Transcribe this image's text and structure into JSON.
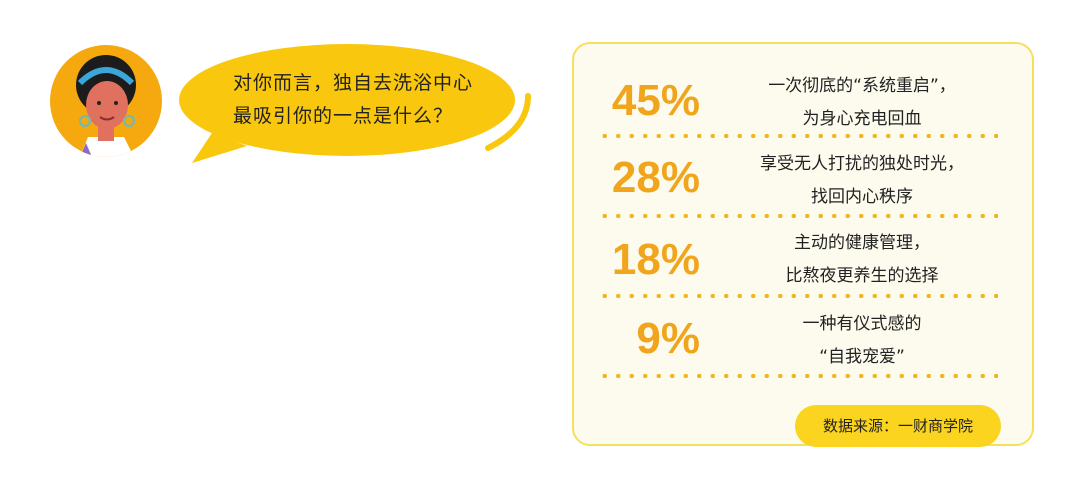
{
  "question": {
    "line1": "对你而言，独自去洗浴中心",
    "line2": "最吸引你的一点是什么？"
  },
  "results": [
    {
      "percent": "45%",
      "value": 45,
      "line1": "一次彻底的“系统重启”，",
      "line2": "为身心充电回血"
    },
    {
      "percent": "28%",
      "value": 28,
      "line1": "享受无人打扰的独处时光，",
      "line2": "找回内心秩序"
    },
    {
      "percent": "18%",
      "value": 18,
      "line1": "主动的健康管理，",
      "line2": "比熬夜更养生的选择"
    },
    {
      "percent": "9%",
      "value": 9,
      "line1": "一种有仪式感的",
      "line2": "“自我宠爱”"
    }
  ],
  "source": "数据来源：一财商学院",
  "colors": {
    "accent": "#f0a51c",
    "bubble": "#f9c80e",
    "avatar_bg": "#f5a90e",
    "card_bg": "#fdfbee"
  }
}
